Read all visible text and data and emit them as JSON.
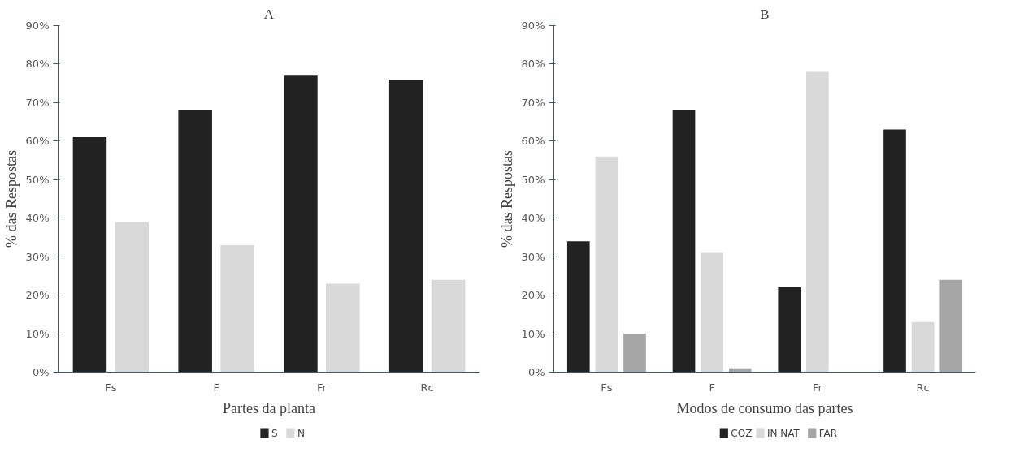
{
  "chart_data": [
    {
      "type": "bar",
      "title": "A",
      "xlabel": "Partes da planta",
      "ylabel": "% das Respostas",
      "categories": [
        "Fs",
        "F",
        "Fr",
        "Rc"
      ],
      "series": [
        {
          "name": "S",
          "color": "#222222",
          "values": [
            61,
            68,
            77,
            76
          ]
        },
        {
          "name": "N",
          "color": "#d9d9d9",
          "values": [
            39,
            33,
            23,
            24
          ]
        }
      ],
      "ylim": [
        0,
        90
      ],
      "yticks": [
        {
          "value": 0,
          "label": "0%"
        },
        {
          "value": 10,
          "label": "10%"
        },
        {
          "value": 20,
          "label": "20%"
        },
        {
          "value": 30,
          "label": "30%"
        },
        {
          "value": 40,
          "label": "40%"
        },
        {
          "value": 50,
          "label": "50%"
        },
        {
          "value": 60,
          "label": "60%"
        },
        {
          "value": 70,
          "label": "70%"
        },
        {
          "value": 80,
          "label": "80%"
        },
        {
          "value": 90,
          "label": "90%"
        }
      ],
      "grid": false,
      "legend": "bottom"
    },
    {
      "type": "bar",
      "title": "B",
      "xlabel": "Modos de consumo das partes",
      "ylabel": "% das Respostas",
      "categories": [
        "Fs",
        "F",
        "Fr",
        "Rc"
      ],
      "series": [
        {
          "name": "COZ",
          "color": "#222222",
          "values": [
            34,
            68,
            22,
            63
          ]
        },
        {
          "name": "IN NAT",
          "color": "#d9d9d9",
          "values": [
            56,
            31,
            78,
            13
          ]
        },
        {
          "name": "FAR",
          "color": "#a6a6a6",
          "values": [
            10,
            1,
            0,
            24
          ]
        }
      ],
      "ylim": [
        0,
        90
      ],
      "yticks": [
        {
          "value": 0,
          "label": "0%"
        },
        {
          "value": 10,
          "label": "10%"
        },
        {
          "value": 20,
          "label": "20%"
        },
        {
          "value": 30,
          "label": "30%"
        },
        {
          "value": 40,
          "label": "40%"
        },
        {
          "value": 50,
          "label": "50%"
        },
        {
          "value": 60,
          "label": "60%"
        },
        {
          "value": 70,
          "label": "70%"
        },
        {
          "value": 80,
          "label": "80%"
        },
        {
          "value": 90,
          "label": "90%"
        }
      ],
      "grid": false,
      "legend": "bottom"
    }
  ]
}
